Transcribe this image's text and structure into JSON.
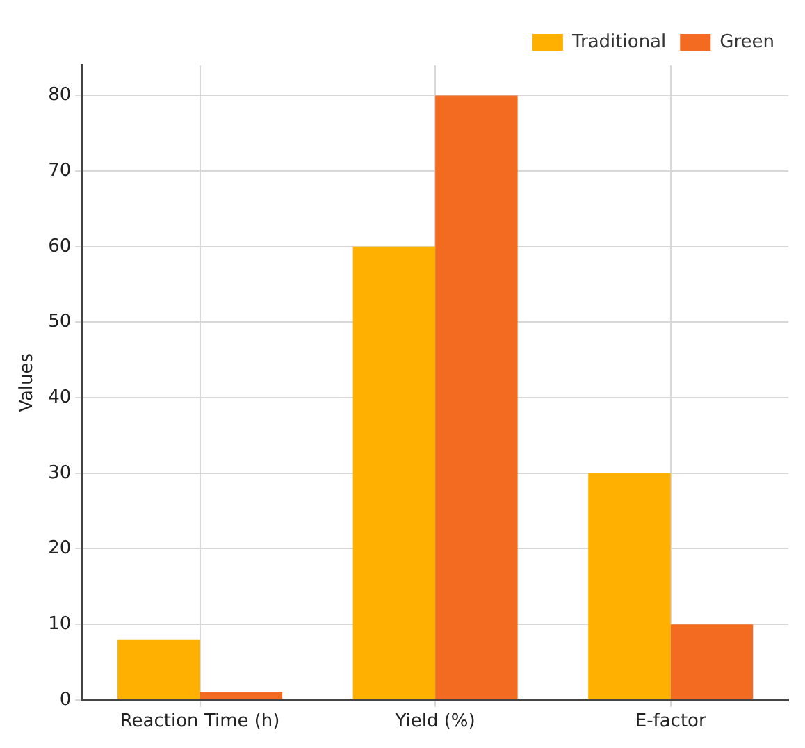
{
  "chart_data": {
    "type": "bar",
    "ylabel": "Values",
    "categories": [
      "Reaction Time (h)",
      "Yield (%)",
      "E-factor"
    ],
    "series": [
      {
        "name": "Traditional",
        "color": "#ffb000",
        "values": [
          8,
          60,
          30
        ]
      },
      {
        "name": "Green",
        "color": "#f26b21",
        "values": [
          1,
          80,
          10
        ]
      }
    ],
    "ylim": [
      0,
      84
    ],
    "yticks": [
      0,
      10,
      20,
      30,
      40,
      50,
      60,
      70,
      80
    ],
    "grid": true,
    "legend": "top right"
  }
}
